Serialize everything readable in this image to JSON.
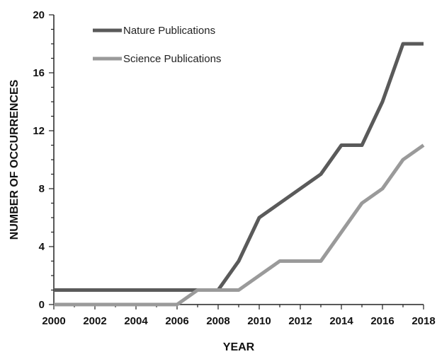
{
  "chart_data": {
    "type": "line",
    "title": "",
    "xlabel": "YEAR",
    "ylabel": "NUMBER OF OCCURRENCES",
    "x": [
      2000,
      2001,
      2002,
      2003,
      2004,
      2005,
      2006,
      2007,
      2008,
      2009,
      2010,
      2011,
      2012,
      2013,
      2014,
      2015,
      2016,
      2017,
      2018
    ],
    "xlim": [
      2000,
      2018
    ],
    "ylim": [
      0,
      20
    ],
    "x_ticks": [
      "2000",
      "2002",
      "2004",
      "2006",
      "2008",
      "2010",
      "2012",
      "2014",
      "2016",
      "2018"
    ],
    "y_ticks": [
      "0",
      "4",
      "8",
      "12",
      "16",
      "20"
    ],
    "grid": false,
    "legend_position": "top-left",
    "series": [
      {
        "name": "Nature Publications",
        "color": "#5a5a5a",
        "values": [
          1,
          1,
          1,
          1,
          1,
          1,
          1,
          1,
          1,
          3,
          6,
          7,
          8,
          9,
          11,
          11,
          14,
          18,
          18
        ]
      },
      {
        "name": "Science Publications",
        "color": "#9a9a9a",
        "values": [
          0,
          0,
          0,
          0,
          0,
          0,
          0,
          1,
          1,
          1,
          2,
          3,
          3,
          3,
          5,
          7,
          8,
          10,
          11
        ]
      }
    ]
  }
}
